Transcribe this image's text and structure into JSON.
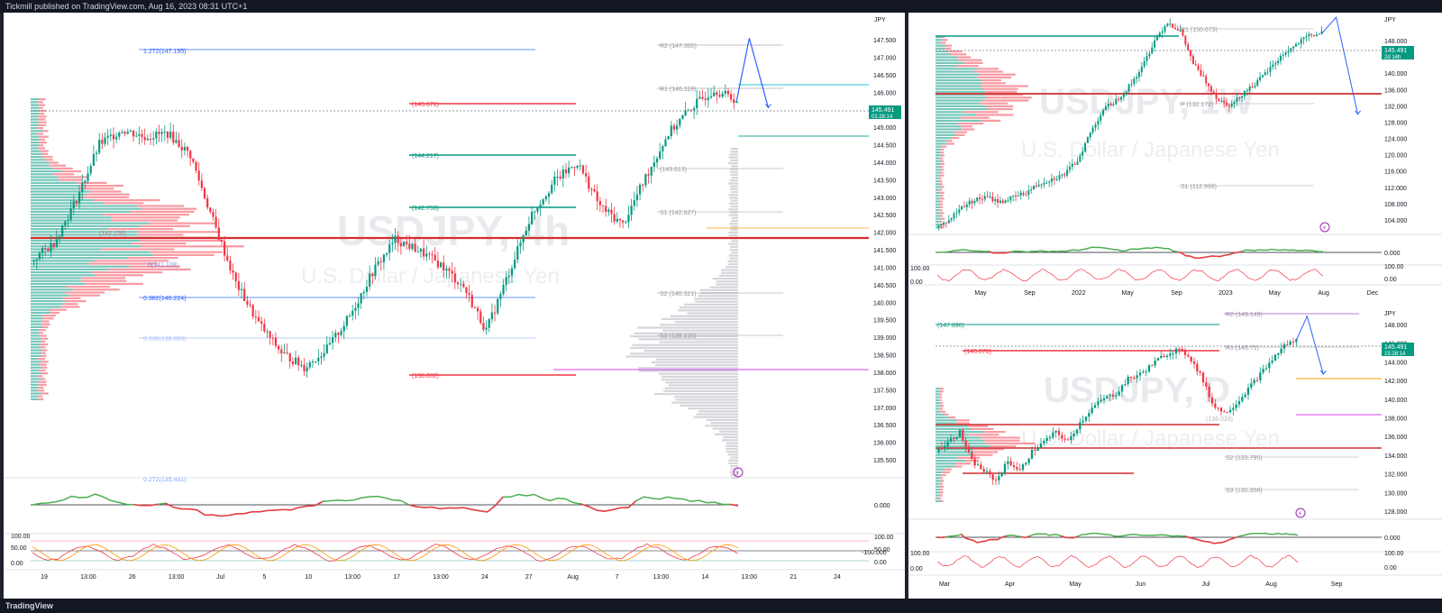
{
  "header": {
    "text": "Tickmill published on TradingView.com, Aug 16, 2023 08:31 UTC+1"
  },
  "footer": {
    "brand": "TradingView"
  },
  "colors": {
    "up": "#089981",
    "down": "#f23645",
    "fib_blue": "#2962ff",
    "pivot_gray": "#787b86",
    "oscillator": "#4caf50",
    "path_blue": "#2962ff"
  },
  "main": {
    "watermark_symbol": "USDJPY, 4h",
    "watermark_name": "U.S. Dollar / Japanese Yen",
    "currency": "JPY",
    "price_badge": "145.491",
    "price_timer": "01:28:14",
    "price_axis": [
      "147.500",
      "147.000",
      "146.500",
      "146.000",
      "145.500",
      "145.000",
      "144.500",
      "144.000",
      "143.500",
      "143.000",
      "142.500",
      "142.000",
      "141.500",
      "141.000",
      "140.500",
      "140.000",
      "139.500",
      "139.000",
      "138.500",
      "138.000",
      "137.500",
      "137.000",
      "136.500",
      "136.000",
      "135.500"
    ],
    "osc_axis": [
      "0.000",
      "-100.000",
      "100.00",
      "50.00",
      "0.00"
    ],
    "time_axis": [
      "19",
      "13:00",
      "26",
      "13:00",
      "Jul",
      "5",
      "10",
      "13:00",
      "17",
      "13:00",
      "24",
      "27",
      "Aug",
      "7",
      "13:00",
      "14",
      "13:00",
      "21",
      "24"
    ],
    "fib_labels": [
      "1.272(147.195)",
      "0.382(140.224)",
      "0.236(139.063)",
      "0(141.108)",
      "0.272(135.401)"
    ],
    "level_labels": [
      "R2 (147.305)",
      "R1 (146.119)",
      "(145.671)",
      "(144.217)",
      "(142.753)",
      "S1 (142.627)",
      "S2 (140.321)",
      "S3 (139.135)",
      "(138.032)",
      "(142.158)",
      "(143.613)"
    ]
  },
  "top_right": {
    "watermark_symbol": "USDJPY, 1W",
    "watermark_name": "U.S. Dollar / Japanese Yen",
    "currency": "JPY",
    "price_badge": "145.491",
    "price_timer": "2d 14h",
    "price_axis": [
      "148.000",
      "144.000",
      "140.000",
      "136.000",
      "132.000",
      "128.000",
      "124.000",
      "120.000",
      "116.000",
      "112.000",
      "108.000",
      "104.000"
    ],
    "osc_axis": [
      "0.000",
      "100.00",
      "0.00"
    ],
    "time_axis": [
      "May",
      "Sep",
      "2022",
      "May",
      "Sep",
      "2023",
      "May",
      "Aug",
      "Dec"
    ],
    "level_labels": [
      "R1 (150.673)",
      "P (132.172)",
      "S1 (112.999)"
    ]
  },
  "bottom_right": {
    "watermark_symbol": "USDJPY, D",
    "watermark_name": "U.S. Dollar / Japanese Yen",
    "currency": "JPY",
    "price_badge": "145.491",
    "price_timer": "15:28:14",
    "price_axis": [
      "148.000",
      "146.000",
      "144.000",
      "142.000",
      "140.000",
      "138.000",
      "136.000",
      "134.000",
      "132.000",
      "130.000",
      "128.000"
    ],
    "osc_axis": [
      "0.000",
      "100.00",
      "0.00"
    ],
    "time_axis": [
      "Mar",
      "Apr",
      "May",
      "Jun",
      "Jul",
      "Aug",
      "Sep"
    ],
    "level_labels": [
      "R2 (149.149)",
      "(147.890)",
      "(145.070)",
      "R1 (145.71)",
      "S2 (133.795)",
      "S3 (130.358)",
      "(136.033)"
    ]
  },
  "chart_data": [
    {
      "type": "candlestick",
      "title": "USDJPY, 4h",
      "ylim": [
        135.2,
        147.9
      ],
      "x": [
        "19",
        "26",
        "Jul",
        "5",
        "10",
        "17",
        "24",
        "27",
        "Aug",
        "7",
        "14"
      ],
      "close_path": [
        141.1,
        141.6,
        142.8,
        144.3,
        144.7,
        144.5,
        144.6,
        144.0,
        142.2,
        140.5,
        139.4,
        138.6,
        138.2,
        138.7,
        139.6,
        140.8,
        141.7,
        141.4,
        141.0,
        140.4,
        139.2,
        140.8,
        142.4,
        143.3,
        143.8,
        142.6,
        142.1,
        143.4,
        144.6,
        145.3,
        145.8,
        145.5
      ],
      "projection": [
        145.5,
        147.2,
        145.3
      ]
    },
    {
      "type": "candlestick",
      "title": "USDJPY, 1W",
      "ylim": [
        102,
        150
      ],
      "x": [
        "May",
        "Sep",
        "2022",
        "May",
        "Sep",
        "2023",
        "May",
        "Aug",
        "Dec"
      ],
      "close_path": [
        103.5,
        105,
        108,
        109.5,
        110,
        109,
        110,
        111,
        113,
        114,
        115,
        118,
        124,
        129,
        131,
        134,
        138,
        144,
        148,
        146,
        139,
        135,
        131,
        130,
        133,
        135,
        138,
        141,
        143,
        145,
        145.5
      ],
      "projection": [
        145.5,
        149,
        128
      ]
    },
    {
      "type": "candlestick",
      "title": "USDJPY, D",
      "ylim": [
        127,
        149
      ],
      "x": [
        "Mar",
        "Apr",
        "May",
        "Jun",
        "Jul",
        "Aug",
        "Sep"
      ],
      "close_path": [
        134,
        135,
        136,
        133,
        132,
        131,
        133,
        132,
        134,
        135,
        136,
        135,
        137,
        138.5,
        139.5,
        140,
        141.5,
        142,
        143,
        144,
        144.5,
        144,
        142,
        139,
        138,
        139,
        140.5,
        142,
        143.5,
        145,
        145.5
      ],
      "projection": [
        145.5,
        148,
        142
      ]
    }
  ]
}
